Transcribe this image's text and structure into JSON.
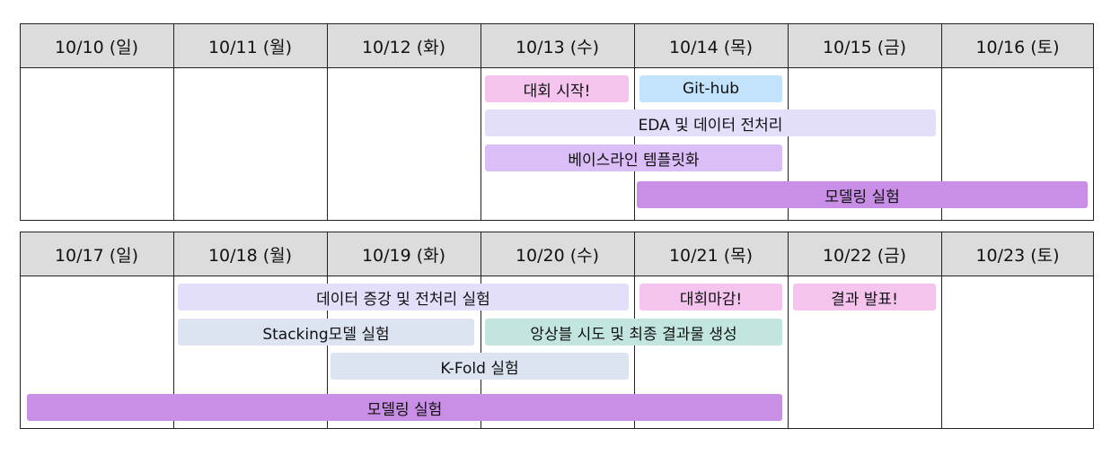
{
  "week1": {
    "days": [
      "10/10 (일)",
      "10/11 (월)",
      "10/12 (화)",
      "10/13 (수)",
      "10/14 (목)",
      "10/15 (금)",
      "10/16 (토)"
    ],
    "events": [
      {
        "label": "대회 시작!",
        "color": "#f4c4ee"
      },
      {
        "label": "Git-hub",
        "color": "#c2e3fb"
      },
      {
        "label": "EDA 및 데이터 전처리",
        "color": "#e3defa"
      },
      {
        "label": "베이스라인 템플릿화",
        "color": "#dbbdf7"
      },
      {
        "label": "모델링 실험",
        "color": "#c98ee6"
      }
    ]
  },
  "week2": {
    "days": [
      "10/17 (일)",
      "10/18 (월)",
      "10/19 (화)",
      "10/20 (수)",
      "10/21 (목)",
      "10/22 (금)",
      "10/23 (토)"
    ],
    "events": [
      {
        "label": "데이터 증강 및 전처리 실험",
        "color": "#e3defa"
      },
      {
        "label": "대회마감!",
        "color": "#f4c4ee"
      },
      {
        "label": "결과 발표!",
        "color": "#f4c4ee"
      },
      {
        "label": "Stacking모델 실험",
        "color": "#dce4f2"
      },
      {
        "label": "앙상블 시도 및 최종 결과물 생성",
        "color": "#c2e6df"
      },
      {
        "label": "K-Fold 실험",
        "color": "#dce4f2"
      },
      {
        "label": "모델링 실험",
        "color": "#c98ee6"
      }
    ]
  }
}
